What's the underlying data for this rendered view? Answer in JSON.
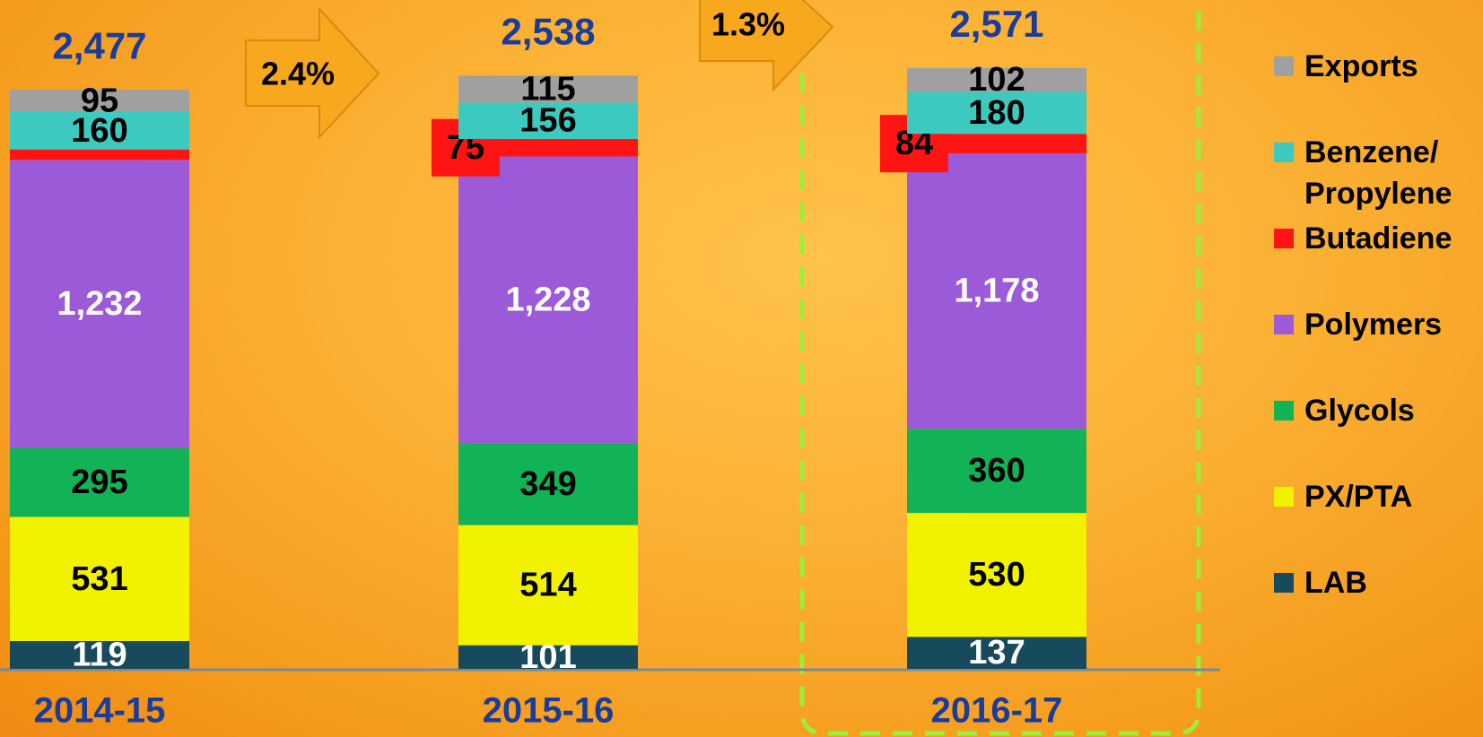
{
  "chart_data": {
    "type": "stacked_bar",
    "categories": [
      "2014-15",
      "2015-16",
      "2016-17"
    ],
    "series": [
      {
        "name": "LAB",
        "color": "#174a5c",
        "label_color": "#ffffff",
        "values": [
          119,
          101,
          137
        ],
        "value_labels": [
          "119",
          "101",
          "137"
        ]
      },
      {
        "name": "PX/PTA",
        "color": "#f2f200",
        "label_color": "#000000",
        "values": [
          531,
          514,
          530
        ],
        "value_labels": [
          "531",
          "514",
          "530"
        ]
      },
      {
        "name": "Glycols",
        "color": "#12b356",
        "label_color": "#000000",
        "values": [
          295,
          349,
          360
        ],
        "value_labels": [
          "295",
          "349",
          "360"
        ]
      },
      {
        "name": "Polymers",
        "color": "#9d5ad8",
        "label_color": "#ffffff",
        "values": [
          1232,
          1228,
          1178
        ],
        "value_labels": [
          "1,232",
          "1,228",
          "1,178"
        ]
      },
      {
        "name": "Butadiene",
        "color": "#ff1414",
        "label_color": "#000000",
        "values": [
          45,
          75,
          84
        ],
        "value_labels": [
          null,
          "75",
          "84"
        ]
      },
      {
        "name": "Benzene/ Propylene",
        "color": "#3cc9c0",
        "label_color": "#000000",
        "values": [
          160,
          156,
          180
        ],
        "value_labels": [
          "160",
          "156",
          "180"
        ]
      },
      {
        "name": "Exports",
        "color": "#a0a0a0",
        "label_color": "#000000",
        "values": [
          95,
          115,
          102
        ],
        "value_labels": [
          "95",
          "115",
          "102"
        ]
      }
    ],
    "totals": [
      {
        "value": 2477,
        "label": "2,477"
      },
      {
        "value": 2538,
        "label": "2,538"
      },
      {
        "value": 2571,
        "label": "2,571"
      }
    ],
    "annotations": [
      "2.4%",
      "1.3%"
    ],
    "ylim": [
      0,
      2800
    ]
  }
}
